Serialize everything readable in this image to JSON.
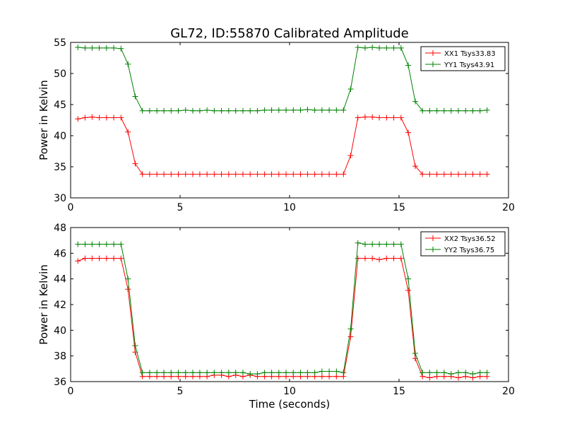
{
  "title": "GL72, ID:55870 Calibrated Amplitude",
  "chart_data": [
    {
      "type": "line",
      "ylabel": "Power in Kelvin",
      "xlabel": "",
      "xlim": [
        0,
        20
      ],
      "ylim": [
        30,
        55
      ],
      "xticks": [
        0,
        5,
        10,
        15,
        20
      ],
      "yticks": [
        30,
        35,
        40,
        45,
        50,
        55
      ],
      "legend_position": "top-right",
      "series": [
        {
          "name": "XX1 Tsys33.83",
          "color": "#ff0000",
          "x": [
            0.33,
            0.66,
            0.98,
            1.31,
            1.64,
            1.97,
            2.3,
            2.62,
            2.95,
            3.28,
            3.61,
            3.94,
            4.26,
            4.59,
            4.92,
            5.25,
            5.58,
            5.9,
            6.23,
            6.56,
            6.89,
            7.22,
            7.54,
            7.87,
            8.2,
            8.53,
            8.86,
            9.18,
            9.51,
            9.84,
            10.17,
            10.5,
            10.82,
            11.15,
            11.48,
            11.81,
            12.14,
            12.46,
            12.79,
            13.12,
            13.45,
            13.78,
            14.1,
            14.43,
            14.76,
            15.09,
            15.42,
            15.74,
            16.07,
            16.4,
            16.73,
            17.06,
            17.38,
            17.71,
            18.04,
            18.37,
            18.7,
            19.02
          ],
          "y": [
            42.7,
            42.9,
            43.0,
            42.9,
            42.9,
            42.9,
            42.9,
            40.6,
            35.5,
            33.8,
            33.8,
            33.8,
            33.8,
            33.8,
            33.8,
            33.8,
            33.8,
            33.8,
            33.8,
            33.8,
            33.8,
            33.8,
            33.8,
            33.8,
            33.8,
            33.8,
            33.8,
            33.8,
            33.8,
            33.8,
            33.8,
            33.8,
            33.8,
            33.8,
            33.8,
            33.8,
            33.8,
            33.8,
            36.8,
            42.9,
            43.0,
            43.0,
            42.9,
            42.9,
            42.9,
            42.9,
            40.5,
            35.1,
            33.8,
            33.8,
            33.8,
            33.8,
            33.8,
            33.8,
            33.8,
            33.8,
            33.8,
            33.8
          ]
        },
        {
          "name": "YY1 Tsys43.91",
          "color": "#008000",
          "x": [
            0.33,
            0.66,
            0.98,
            1.31,
            1.64,
            1.97,
            2.3,
            2.62,
            2.95,
            3.28,
            3.61,
            3.94,
            4.26,
            4.59,
            4.92,
            5.25,
            5.58,
            5.9,
            6.23,
            6.56,
            6.89,
            7.22,
            7.54,
            7.87,
            8.2,
            8.53,
            8.86,
            9.18,
            9.51,
            9.84,
            10.17,
            10.5,
            10.82,
            11.15,
            11.48,
            11.81,
            12.14,
            12.46,
            12.79,
            13.12,
            13.45,
            13.78,
            14.1,
            14.43,
            14.76,
            15.09,
            15.42,
            15.74,
            16.07,
            16.4,
            16.73,
            17.06,
            17.38,
            17.71,
            18.04,
            18.37,
            18.7,
            19.02
          ],
          "y": [
            54.2,
            54.1,
            54.1,
            54.1,
            54.1,
            54.1,
            54.0,
            51.5,
            46.3,
            44.0,
            44.0,
            44.0,
            44.0,
            44.0,
            44.0,
            44.1,
            44.0,
            44.0,
            44.1,
            44.0,
            44.0,
            44.0,
            44.0,
            44.0,
            44.0,
            44.0,
            44.1,
            44.1,
            44.1,
            44.1,
            44.1,
            44.1,
            44.2,
            44.1,
            44.1,
            44.1,
            44.1,
            44.1,
            47.5,
            54.2,
            54.1,
            54.2,
            54.1,
            54.1,
            54.1,
            54.1,
            51.3,
            45.5,
            44.0,
            44.0,
            44.0,
            44.0,
            44.0,
            44.0,
            44.0,
            44.0,
            44.0,
            44.1
          ]
        }
      ]
    },
    {
      "type": "line",
      "ylabel": "Power in Kelvin",
      "xlabel": "Time (seconds)",
      "xlim": [
        0,
        20
      ],
      "ylim": [
        36,
        48
      ],
      "xticks": [
        0,
        5,
        10,
        15,
        20
      ],
      "yticks": [
        36,
        38,
        40,
        42,
        44,
        46,
        48
      ],
      "legend_position": "top-right",
      "series": [
        {
          "name": "XX2 Tsys36.52",
          "color": "#ff0000",
          "x": [
            0.33,
            0.66,
            0.98,
            1.31,
            1.64,
            1.97,
            2.3,
            2.62,
            2.95,
            3.28,
            3.61,
            3.94,
            4.26,
            4.59,
            4.92,
            5.25,
            5.58,
            5.9,
            6.23,
            6.56,
            6.89,
            7.22,
            7.54,
            7.87,
            8.2,
            8.53,
            8.86,
            9.18,
            9.51,
            9.84,
            10.17,
            10.5,
            10.82,
            11.15,
            11.48,
            11.81,
            12.14,
            12.46,
            12.79,
            13.12,
            13.45,
            13.78,
            14.1,
            14.43,
            14.76,
            15.09,
            15.42,
            15.74,
            16.07,
            16.4,
            16.73,
            17.06,
            17.38,
            17.71,
            18.04,
            18.37,
            18.7,
            19.02
          ],
          "y": [
            45.4,
            45.6,
            45.6,
            45.6,
            45.6,
            45.6,
            45.6,
            43.2,
            38.3,
            36.4,
            36.4,
            36.4,
            36.4,
            36.4,
            36.4,
            36.4,
            36.4,
            36.4,
            36.4,
            36.5,
            36.5,
            36.4,
            36.5,
            36.4,
            36.5,
            36.4,
            36.4,
            36.4,
            36.4,
            36.4,
            36.4,
            36.4,
            36.4,
            36.4,
            36.4,
            36.4,
            36.4,
            36.4,
            39.5,
            45.6,
            45.6,
            45.6,
            45.5,
            45.6,
            45.6,
            45.6,
            43.1,
            37.8,
            36.4,
            36.3,
            36.4,
            36.4,
            36.4,
            36.3,
            36.4,
            36.3,
            36.4,
            36.4
          ]
        },
        {
          "name": "YY2 Tsys36.75",
          "color": "#008000",
          "x": [
            0.33,
            0.66,
            0.98,
            1.31,
            1.64,
            1.97,
            2.3,
            2.62,
            2.95,
            3.28,
            3.61,
            3.94,
            4.26,
            4.59,
            4.92,
            5.25,
            5.58,
            5.9,
            6.23,
            6.56,
            6.89,
            7.22,
            7.54,
            7.87,
            8.2,
            8.53,
            8.86,
            9.18,
            9.51,
            9.84,
            10.17,
            10.5,
            10.82,
            11.15,
            11.48,
            11.81,
            12.14,
            12.46,
            12.79,
            13.12,
            13.45,
            13.78,
            14.1,
            14.43,
            14.76,
            15.09,
            15.42,
            15.74,
            16.07,
            16.4,
            16.73,
            17.06,
            17.38,
            17.71,
            18.04,
            18.37,
            18.7,
            19.02
          ],
          "y": [
            46.7,
            46.7,
            46.7,
            46.7,
            46.7,
            46.7,
            46.7,
            44.0,
            38.8,
            36.7,
            36.7,
            36.7,
            36.7,
            36.7,
            36.7,
            36.7,
            36.7,
            36.7,
            36.7,
            36.7,
            36.7,
            36.7,
            36.7,
            36.7,
            36.6,
            36.6,
            36.7,
            36.7,
            36.7,
            36.7,
            36.7,
            36.7,
            36.7,
            36.7,
            36.8,
            36.8,
            36.8,
            36.7,
            40.1,
            46.8,
            46.7,
            46.7,
            46.7,
            46.7,
            46.7,
            46.7,
            44.0,
            38.2,
            36.7,
            36.7,
            36.7,
            36.7,
            36.6,
            36.7,
            36.7,
            36.6,
            36.7,
            36.7
          ]
        }
      ]
    }
  ]
}
